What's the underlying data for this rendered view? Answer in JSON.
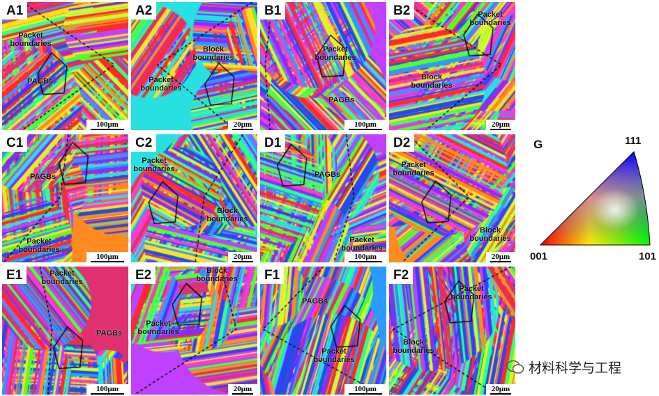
{
  "panels": [
    {
      "id": "A1",
      "annotations": [
        "Packet boundaries",
        "PAGBs"
      ],
      "scale": "100μm"
    },
    {
      "id": "A2",
      "annotations": [
        "Block boundaries",
        "Packet boundaries"
      ],
      "scale": "20μm"
    },
    {
      "id": "B1",
      "annotations": [
        "Packet boundaries",
        "PAGBs"
      ],
      "scale": "100μm"
    },
    {
      "id": "B2",
      "annotations": [
        "Packet boundaries",
        "Block boundaries"
      ],
      "scale": "20μm"
    },
    {
      "id": "C1",
      "annotations": [
        "PAGBs",
        "Packet boundaries"
      ],
      "scale": "100μm"
    },
    {
      "id": "C2",
      "annotations": [
        "Packet boundaries",
        "Block boundaries"
      ],
      "scale": "20μm"
    },
    {
      "id": "D1",
      "annotations": [
        "PAGBs",
        "Packet boundaries"
      ],
      "scale": "100μm"
    },
    {
      "id": "D2",
      "annotations": [
        "Packet boundaries",
        "Block boundaries"
      ],
      "scale": "20μm"
    },
    {
      "id": "E1",
      "annotations": [
        "Packet boundaries",
        "PAGBs"
      ],
      "scale": "100μm"
    },
    {
      "id": "E2",
      "annotations": [
        "Block boundaries",
        "Packet boundaries"
      ],
      "scale": "20μm"
    },
    {
      "id": "F1",
      "annotations": [
        "PAGBs",
        "Packet boundaries"
      ],
      "scale": "100μm"
    },
    {
      "id": "F2",
      "annotations": [
        "Packet boundaries",
        "Block boundaries"
      ],
      "scale": "20μm"
    }
  ],
  "legend": {
    "label": "G",
    "corner_111": "111",
    "corner_001": "001",
    "corner_101": "101",
    "colors": {
      "001": "#ff0000",
      "101": "#00ff00",
      "111": "#0000ff"
    }
  },
  "watermark": {
    "text": "材料科学与工程",
    "icon": "wechat-icon"
  },
  "palette": [
    "#ff2a2a",
    "#ff3cc8",
    "#c040ff",
    "#3c3cff",
    "#2a9cff",
    "#28e0e0",
    "#30ff90",
    "#50ff30",
    "#c8ff30",
    "#ffe020",
    "#ff8a20",
    "#e03070",
    "#8a2cff",
    "#2050e0"
  ]
}
